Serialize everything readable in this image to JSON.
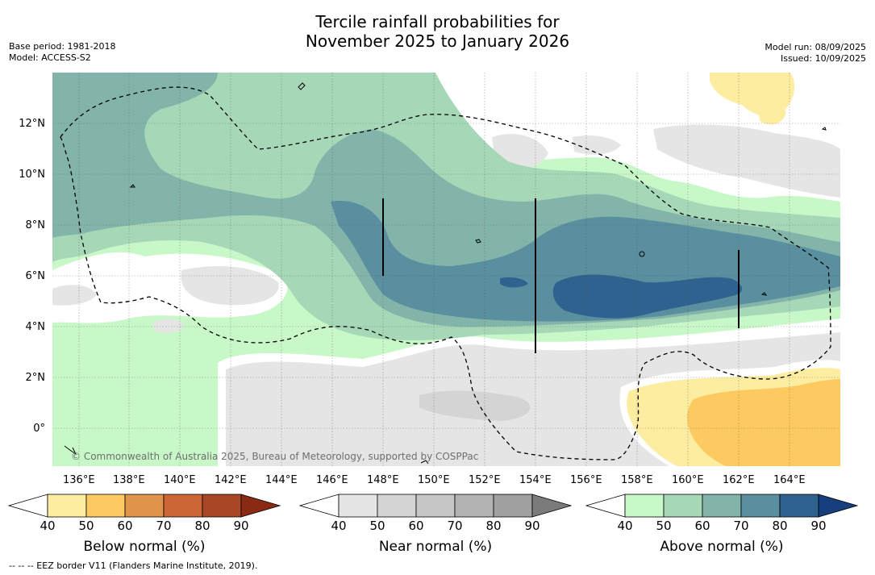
{
  "title": {
    "line1": "Tercile rainfall probabilities for",
    "line2": "November 2025 to January 2026"
  },
  "meta_left": {
    "base_period": "Base period: 1981-2018",
    "model": "Model: ACCESS-S2"
  },
  "meta_right": {
    "model_run": "Model run: 08/09/2025",
    "issued": "Issued: 10/09/2025"
  },
  "map": {
    "lon_labels": [
      "136°E",
      "138°E",
      "140°E",
      "142°E",
      "144°E",
      "146°E",
      "148°E",
      "150°E",
      "152°E",
      "154°E",
      "156°E",
      "158°E",
      "160°E",
      "162°E",
      "164°E"
    ],
    "lat_labels": [
      "12°N",
      "10°N",
      "8°N",
      "6°N",
      "4°N",
      "2°N",
      "0°"
    ],
    "credit": "© Commonwealth of Australia 2025, Bureau of Meteorology, supported by COSPPac",
    "colors": {
      "below": [
        "#fdeda0",
        "#fdca61",
        "#e1944b",
        "#cd6636",
        "#aa4726",
        "#8b2a14"
      ],
      "near": [
        "#e5e5e5",
        "#d4d4d4",
        "#c6c6c6",
        "#b3b3b3",
        "#a0a0a0",
        "#7b7b7b"
      ],
      "above": [
        "#c8f8c8",
        "#a6d8b8",
        "#83b4aa",
        "#5a8fa0",
        "#30628f",
        "#173f7d"
      ]
    }
  },
  "colorbars": [
    {
      "label": "Below normal (%)",
      "ticks": [
        "40",
        "50",
        "60",
        "70",
        "80",
        "90"
      ]
    },
    {
      "label": "Near normal (%)",
      "ticks": [
        "40",
        "50",
        "60",
        "70",
        "80",
        "90"
      ]
    },
    {
      "label": "Above normal (%)",
      "ticks": [
        "40",
        "50",
        "60",
        "70",
        "80",
        "90"
      ]
    }
  ],
  "footer": "--  --  -- EEZ border V11 (Flanders Marine Institute, 2019)."
}
